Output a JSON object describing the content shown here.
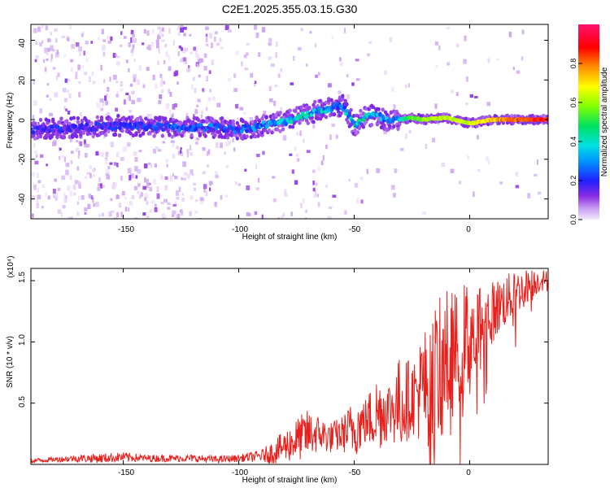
{
  "title": "C2E1.2025.355.03.15.G30",
  "colors": {
    "snr_line": "#e8201c",
    "track": "#1a1aff",
    "background": "#ffffff"
  },
  "chart_data": [
    {
      "type": "heatmap",
      "title": "C2E1.2025.355.03.15.G30",
      "xlabel": "Height of straight line (km)",
      "ylabel": "Frequency (Hz)",
      "xlim": [
        -190,
        34
      ],
      "ylim": [
        -50,
        48
      ],
      "x_ticks": [
        "-150",
        "-100",
        "-50",
        "0"
      ],
      "x_tick_values": [
        -150,
        -100,
        -50,
        0
      ],
      "y_ticks": [
        "40",
        "20",
        "0",
        "-20",
        "-40"
      ],
      "y_tick_values": [
        40,
        20,
        0,
        -20,
        -40
      ],
      "colorbar": {
        "label": "Normalized spectral amplitude",
        "ticks": [
          "0.0",
          "0.2",
          "0.4",
          "0.6",
          "0.8"
        ],
        "tick_values": [
          0.0,
          0.2,
          0.4,
          0.6,
          0.8
        ],
        "range": [
          0,
          1
        ],
        "colormap": "rainbow (light violet → blue → cyan → green → yellow → red → magenta)"
      },
      "main_track": {
        "description": "Frequency of strongest spectral ridge vs height",
        "x": [
          -190,
          -170,
          -150,
          -130,
          -110,
          -100,
          -90,
          -80,
          -70,
          -60,
          -55,
          -50,
          -45,
          -40,
          -35,
          -30,
          -25,
          -20,
          -10,
          0,
          10,
          20,
          30,
          34
        ],
        "y": [
          -5,
          -4,
          -3,
          -4,
          -4,
          -5,
          -3,
          -1,
          3,
          6,
          7,
          -3,
          2,
          2,
          -1,
          0,
          1,
          0,
          1,
          -2,
          0,
          0,
          0,
          0
        ],
        "amplitude": [
          0.2,
          0.2,
          0.2,
          0.25,
          0.25,
          0.25,
          0.3,
          0.35,
          0.4,
          0.35,
          0.3,
          0.45,
          0.4,
          0.35,
          0.35,
          0.4,
          0.55,
          0.6,
          0.65,
          0.65,
          0.75,
          0.85,
          0.9,
          0.9
        ]
      }
    },
    {
      "type": "line",
      "xlabel": "Height of straight line (km)",
      "ylabel": "SNR (10 * v/v)",
      "y_scale_label": "(x10⁴)",
      "xlim": [
        -190,
        34
      ],
      "ylim": [
        0,
        1.6
      ],
      "x_ticks": [
        "-150",
        "-100",
        "-50",
        "0"
      ],
      "x_tick_values": [
        -150,
        -100,
        -50,
        0
      ],
      "y_ticks": [
        "0.5",
        "1.0",
        "1.5"
      ],
      "y_tick_values": [
        0.5,
        1.0,
        1.5
      ],
      "series": [
        {
          "x": [
            -190,
            -180,
            -170,
            -160,
            -150,
            -140,
            -130,
            -120,
            -110,
            -100,
            -90,
            -85,
            -80,
            -75,
            -70,
            -65,
            -60,
            -55,
            -50,
            -45,
            -40,
            -35,
            -30,
            -25,
            -20,
            -15,
            -10,
            -5,
            0,
            5,
            10,
            15,
            20,
            25,
            30,
            34
          ],
          "y": [
            0.03,
            0.04,
            0.05,
            0.05,
            0.06,
            0.05,
            0.05,
            0.05,
            0.04,
            0.05,
            0.07,
            0.1,
            0.15,
            0.2,
            0.25,
            0.25,
            0.22,
            0.25,
            0.3,
            0.35,
            0.42,
            0.45,
            0.5,
            0.55,
            0.62,
            0.72,
            0.85,
            0.95,
            1.05,
            1.15,
            1.25,
            1.33,
            1.4,
            1.46,
            1.5,
            1.53
          ],
          "envelope_max": [
            0.05,
            0.06,
            0.08,
            0.09,
            0.1,
            0.08,
            0.08,
            0.08,
            0.07,
            0.08,
            0.12,
            0.2,
            0.28,
            0.38,
            0.45,
            0.4,
            0.35,
            0.4,
            0.55,
            0.55,
            0.75,
            0.7,
            0.9,
            0.85,
            1.1,
            1.3,
            1.45,
            1.4,
            1.58,
            1.5,
            1.5,
            1.55,
            1.58,
            1.6,
            1.6,
            1.58
          ]
        }
      ]
    }
  ]
}
